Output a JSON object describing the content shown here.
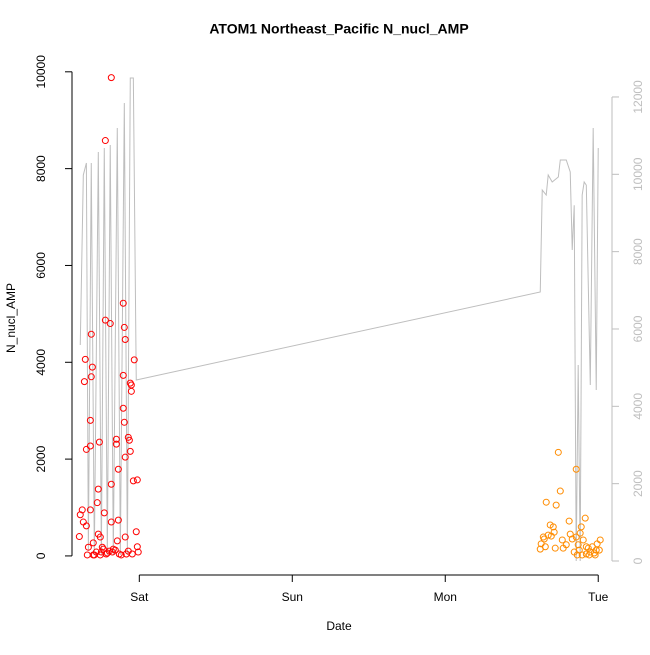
{
  "chart_data": {
    "type": "scatter",
    "title": "ATOM1 Northeast_Pacific N_nucl_AMP",
    "x_label": "Date",
    "y_label": "N_nucl_AMP",
    "xlim": [
      0.56,
      4.09
    ],
    "xticks": [
      {
        "value": 1,
        "label": "Sat"
      },
      {
        "value": 2,
        "label": "Sun"
      },
      {
        "value": 3,
        "label": "Mon"
      },
      {
        "value": 4,
        "label": "Tue"
      }
    ],
    "ylim": [
      -394,
      10244
    ],
    "yticks": [
      0,
      2000,
      4000,
      6000,
      8000,
      10000
    ],
    "y2lim": [
      -362,
      12956
    ],
    "y2ticks": [
      0,
      2000,
      4000,
      6000,
      8000,
      10000,
      12000
    ],
    "y2color": "#bebebe",
    "series": [
      {
        "kind": "points",
        "color": "#ff0000",
        "x": [
          0.608,
          0.614,
          0.627,
          0.641,
          0.647,
          0.634,
          0.654,
          0.654,
          0.667,
          0.66,
          0.68,
          0.68,
          0.686,
          0.686,
          0.693,
          0.68,
          0.699,
          0.699,
          0.725,
          0.732,
          0.732,
          0.739,
          0.745,
          0.752,
          0.771,
          0.778,
          0.778,
          0.791,
          0.81,
          0.817,
          0.817,
          0.817,
          0.83,
          0.85,
          0.85,
          0.863,
          0.856,
          0.863,
          0.882,
          0.895,
          0.895,
          0.902,
          0.908,
          0.895,
          0.902,
          0.908,
          0.908,
          0.928,
          0.935,
          0.941,
          0.948,
          0.948,
          0.941,
          0.961,
          0.967,
          0.987,
          0.98,
          0.987,
          0.993,
          0.706,
          0.745,
          0.784,
          0.824,
          0.869,
          0.915,
          0.954,
          0.719,
          0.765,
          0.804,
          0.843,
          0.928,
          0.758
        ],
        "y": [
          400,
          850,
          950,
          3600,
          4060,
          700,
          620,
          2200,
          180,
          20,
          2800,
          2270,
          4580,
          3700,
          3900,
          950,
          270,
          20,
          1100,
          450,
          1380,
          2350,
          390,
          80,
          890,
          4870,
          8580,
          60,
          4800,
          9880,
          1480,
          700,
          140,
          2410,
          2310,
          1790,
          310,
          740,
          20,
          3730,
          5220,
          4720,
          4470,
          3050,
          2760,
          2040,
          390,
          2450,
          2390,
          3570,
          3530,
          3400,
          2160,
          1550,
          4050,
          1570,
          500,
          190,
          80,
          20,
          20,
          40,
          80,
          40,
          40,
          40,
          80,
          140,
          100,
          120,
          100,
          180
        ]
      },
      {
        "kind": "points",
        "color": "#ff8c00",
        "x": [
          3.621,
          3.627,
          3.641,
          3.647,
          3.66,
          3.654,
          3.673,
          3.686,
          3.693,
          3.706,
          3.712,
          3.725,
          3.719,
          3.752,
          3.739,
          3.765,
          3.771,
          3.791,
          3.81,
          3.817,
          3.83,
          3.856,
          3.856,
          3.869,
          3.882,
          3.876,
          3.889,
          3.902,
          3.915,
          3.922,
          3.922,
          3.935,
          3.948,
          3.961,
          3.974,
          3.987,
          3.993,
          4.007,
          4.013,
          3.843,
          3.863,
          3.895,
          3.941,
          3.98
        ],
        "y": [
          140,
          250,
          390,
          350,
          1110,
          190,
          430,
          640,
          410,
          600,
          490,
          1050,
          160,
          1340,
          2140,
          330,
          160,
          230,
          720,
          450,
          350,
          1790,
          390,
          230,
          470,
          120,
          600,
          330,
          780,
          40,
          190,
          160,
          80,
          190,
          60,
          120,
          250,
          120,
          330,
          80,
          20,
          20,
          20,
          20
        ]
      },
      {
        "kind": "line",
        "color": "#bebebe",
        "axis": "y2",
        "x": [
          0.614,
          0.634,
          0.654,
          0.667,
          0.686,
          0.706,
          0.732,
          0.752,
          0.771,
          0.791,
          0.81,
          0.83,
          0.856,
          0.876,
          0.902,
          0.922,
          0.941,
          0.961,
          0.98,
          3.621,
          3.634,
          3.66,
          3.673,
          3.699,
          3.739,
          3.752,
          3.791,
          3.817,
          3.83,
          3.843,
          3.856,
          3.869,
          3.882,
          3.895,
          3.908,
          3.922,
          3.948,
          3.967,
          3.987,
          4.0
        ],
        "y": [
          5586,
          9982,
          10292,
          285,
          10292,
          155,
          10577,
          155,
          10680,
          155,
          10758,
          155,
          11197,
          155,
          11844,
          155,
          12490,
          12490,
          4680,
          6956,
          9594,
          9465,
          9982,
          9800,
          9930,
          10370,
          10370,
          10060,
          8042,
          9200,
          0,
          5069,
          0,
          9465,
          9801,
          9720,
          4551,
          11197,
          4422,
          10680
        ]
      }
    ]
  }
}
